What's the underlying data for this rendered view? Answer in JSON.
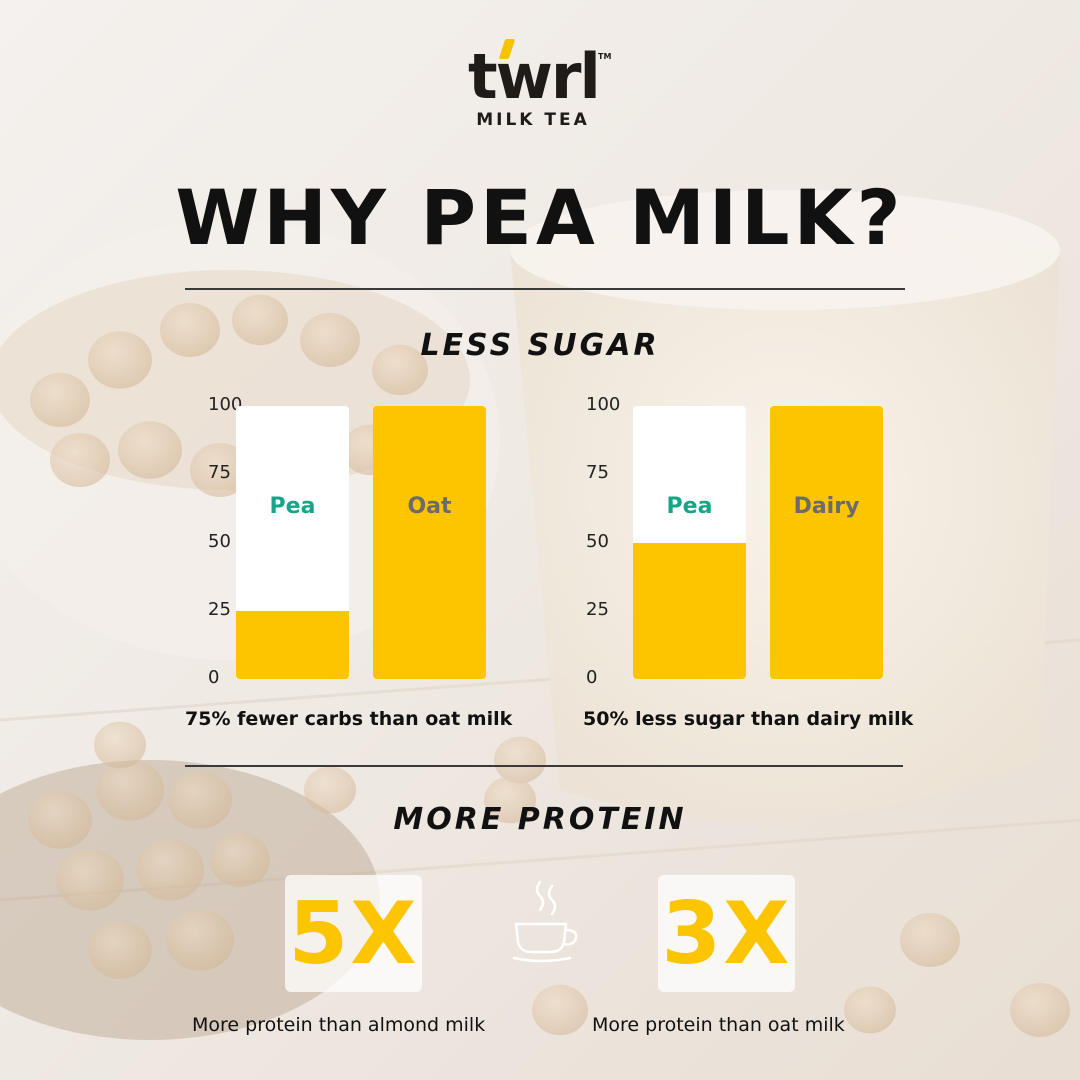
{
  "brand": {
    "name": "twrl",
    "tagline": "MILK TEA",
    "trademark": "TM",
    "accent_color": "#fdc400"
  },
  "title": "WHY PEA MILK?",
  "sections": {
    "sugar": {
      "title": "LESS SUGAR"
    },
    "protein": {
      "title": "MORE PROTEIN"
    }
  },
  "chart_data": [
    {
      "type": "bar",
      "categories": [
        "Pea",
        "Oat"
      ],
      "values": [
        25,
        100
      ],
      "ylim": [
        0,
        100
      ],
      "yticks": [
        "0",
        "25",
        "50",
        "75",
        "100"
      ],
      "caption": "75% fewer carbs than oat milk",
      "label_colors": [
        "#17a589",
        "#6b6b6b"
      ],
      "bar_color": "#fdc400"
    },
    {
      "type": "bar",
      "categories": [
        "Pea",
        "Dairy"
      ],
      "values": [
        50,
        100
      ],
      "ylim": [
        0,
        100
      ],
      "yticks": [
        "0",
        "25",
        "50",
        "75",
        "100"
      ],
      "caption": "50% less sugar than dairy milk",
      "label_colors": [
        "#17a589",
        "#6b6b6b"
      ],
      "bar_color": "#fdc400"
    }
  ],
  "protein_stats": [
    {
      "value": "5X",
      "caption": "More protein than almond milk"
    },
    {
      "value": "3X",
      "caption": "More protein than oat milk"
    }
  ],
  "icons": {
    "cup": "coffee-cup-icon"
  }
}
